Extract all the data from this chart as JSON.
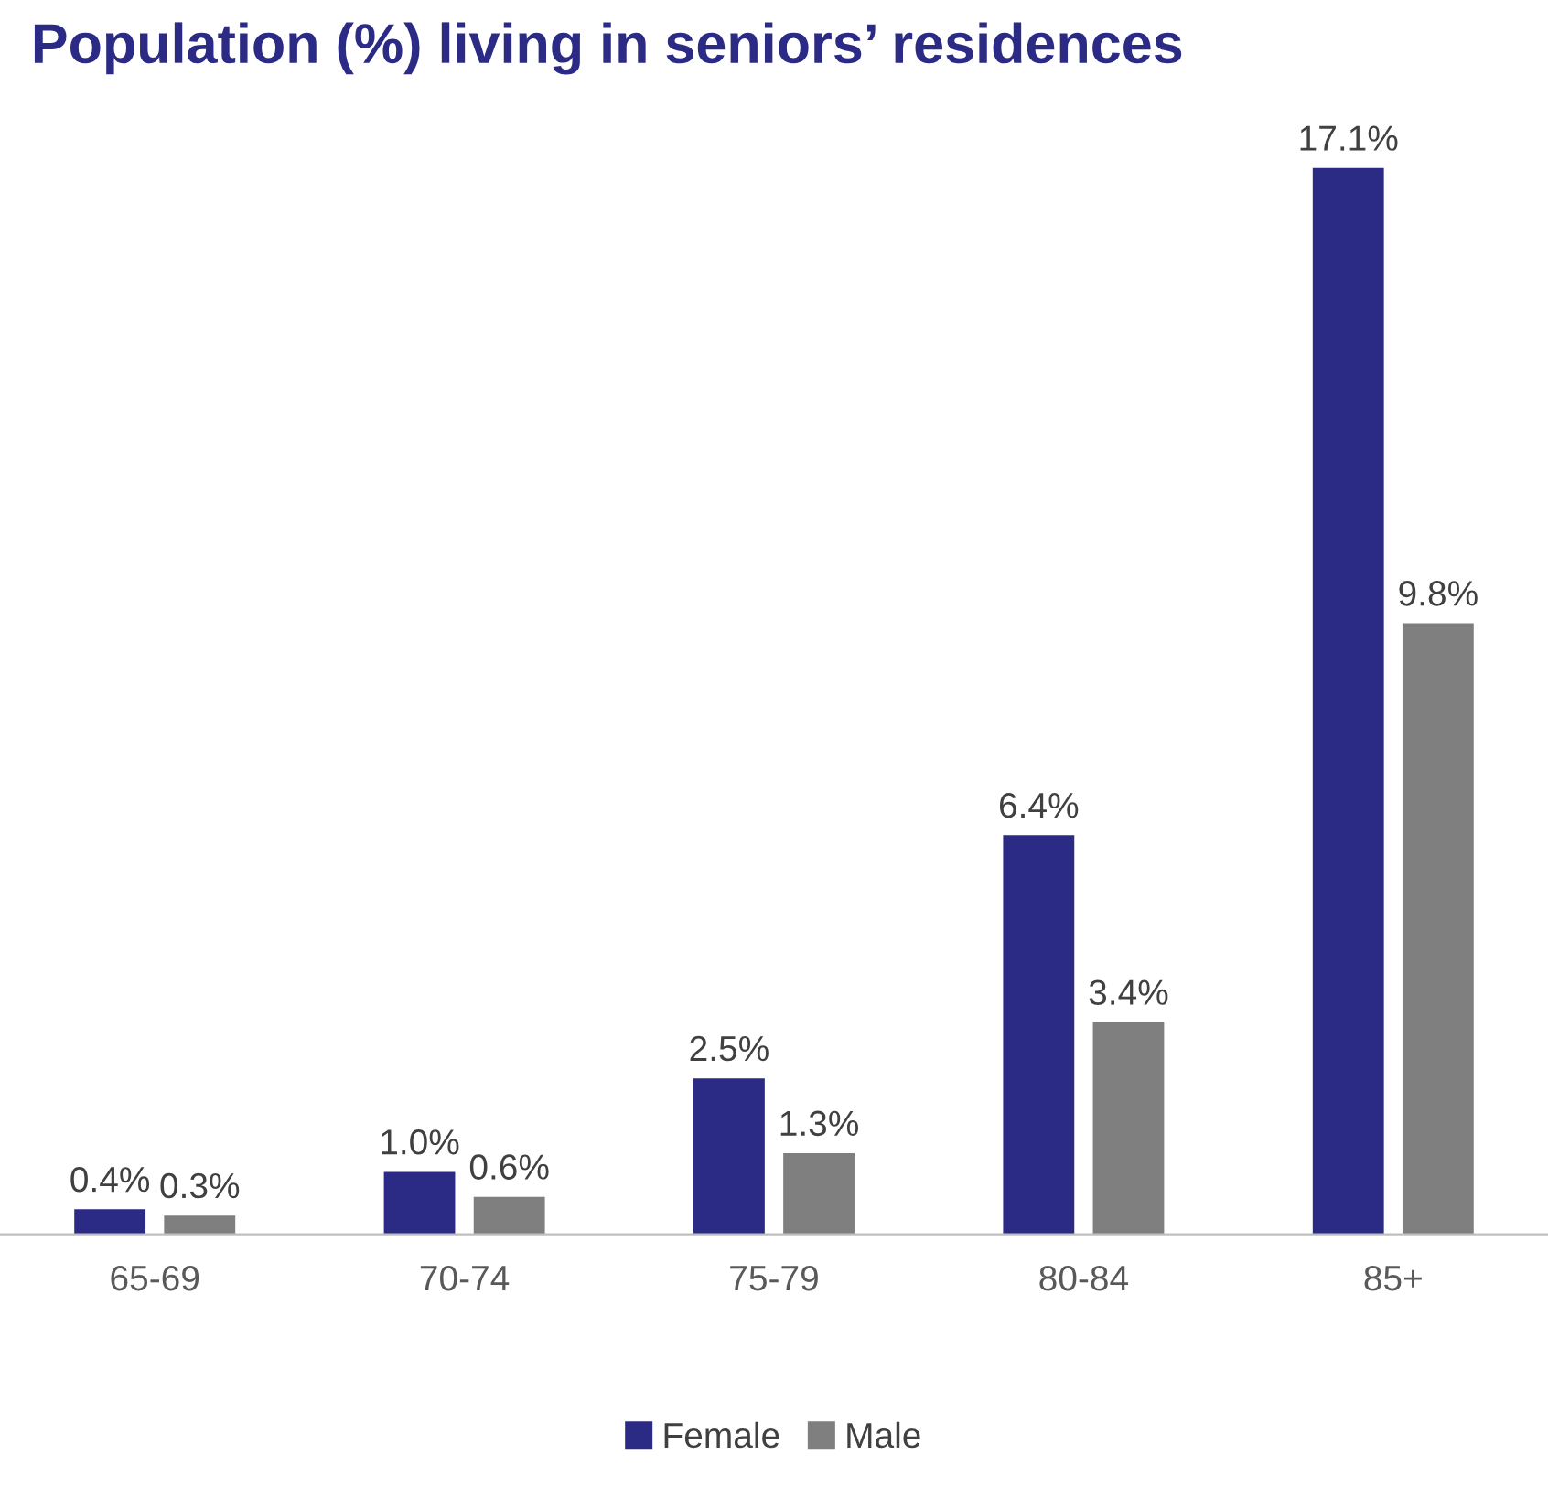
{
  "chart_data": {
    "type": "bar",
    "title": "Population (%) living in seniors’ residences",
    "categories": [
      "65-69",
      "70-74",
      "75-79",
      "80-84",
      "85+"
    ],
    "series": [
      {
        "name": "Female",
        "color": "#2b2a84",
        "values": [
          0.4,
          1.0,
          2.5,
          6.4,
          17.1
        ],
        "value_labels": [
          "0.4%",
          "1.0%",
          "2.5%",
          "6.4%",
          "17.1%"
        ]
      },
      {
        "name": "Male",
        "color": "#7f7f7f",
        "values": [
          0.3,
          0.6,
          1.3,
          3.4,
          9.8
        ],
        "value_labels": [
          "0.3%",
          "0.6%",
          "1.3%",
          "3.4%",
          "9.8%"
        ]
      }
    ],
    "legend": "bottom"
  }
}
